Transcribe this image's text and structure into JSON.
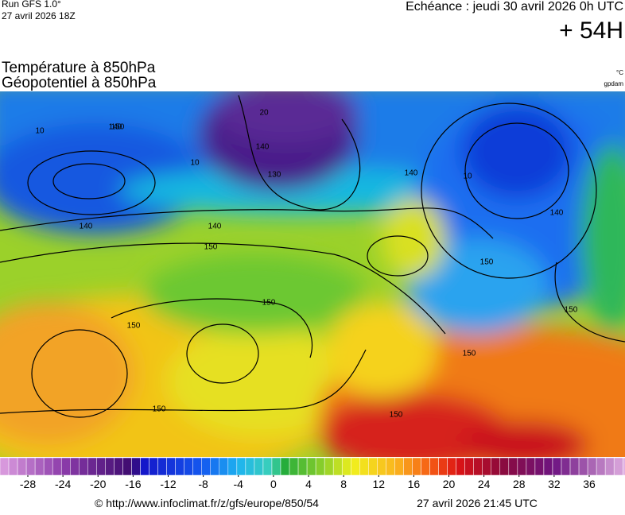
{
  "header": {
    "run": "Run GFS 1.0°",
    "init": "27 avril 2026 18Z",
    "echeance": "Echéance : jeudi 30 avril 2026 0h UTC",
    "lead": "+ 54H"
  },
  "titles": [
    "Température à 850hPa",
    "Géopotentiel à 850hPa"
  ],
  "units": [
    "°C",
    "gpdam"
  ],
  "contour_labels": [
    "140",
    "10",
    "10",
    "20",
    "140",
    "130",
    "140",
    "140",
    "150",
    "150",
    "150",
    "150",
    "150",
    "140",
    "150",
    "150",
    "10",
    "140",
    "150",
    "150"
  ],
  "colorbar": {
    "ticks": [
      -28,
      -24,
      -20,
      -16,
      -12,
      -8,
      -4,
      0,
      4,
      8,
      12,
      16,
      20,
      24,
      28,
      32,
      36
    ]
  },
  "footer": {
    "source": "© http://www.infoclimat.fr/z/gfs/europe/850/54",
    "time": "27 avril 2026 21:45 UTC"
  }
}
